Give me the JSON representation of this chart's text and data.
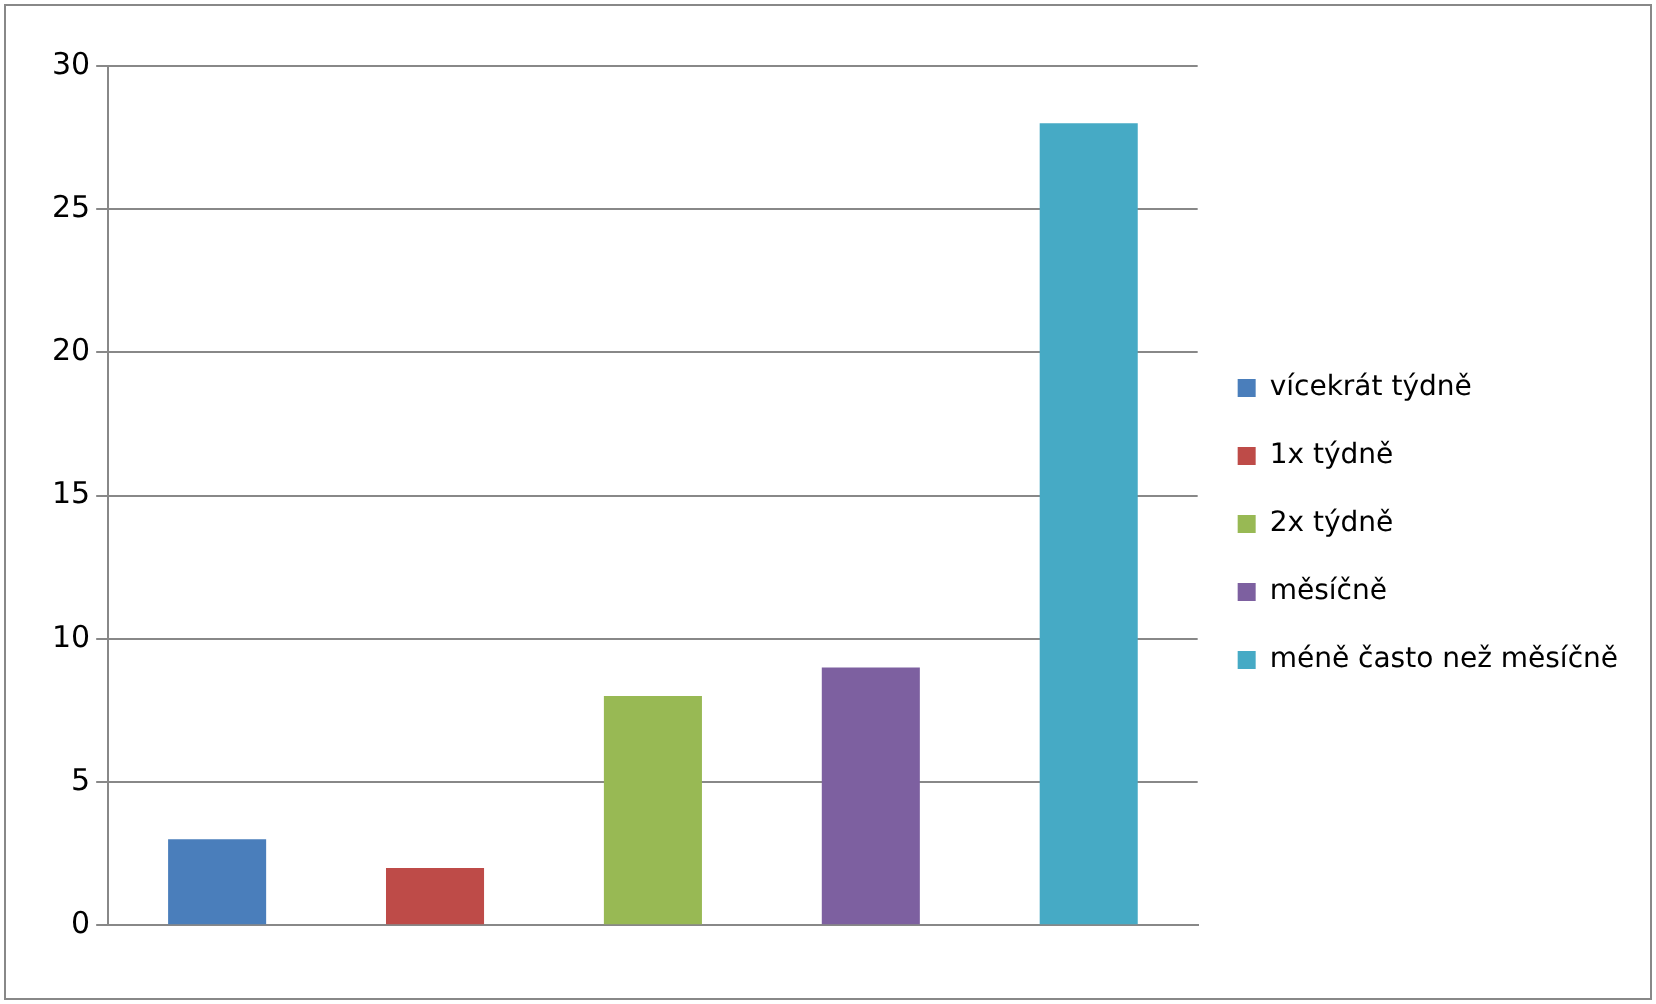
{
  "chart_data": {
    "type": "bar",
    "categories": [
      null
    ],
    "series": [
      {
        "name": "vícekrát týdně",
        "color": "#4a7ebb",
        "values": [
          3
        ]
      },
      {
        "name": "1x týdně",
        "color": "#be4b48",
        "values": [
          2
        ]
      },
      {
        "name": "2x týdně",
        "color": "#98b954",
        "values": [
          8
        ]
      },
      {
        "name": "měsíčně",
        "color": "#7d60a0",
        "values": [
          9
        ]
      },
      {
        "name": "méně často než měsíčně",
        "color": "#46aac5",
        "values": [
          28
        ]
      }
    ],
    "ylim": [
      0,
      30
    ],
    "yticks": [
      0,
      5,
      10,
      15,
      20,
      25,
      30
    ],
    "grid": "y",
    "legend": "right"
  }
}
